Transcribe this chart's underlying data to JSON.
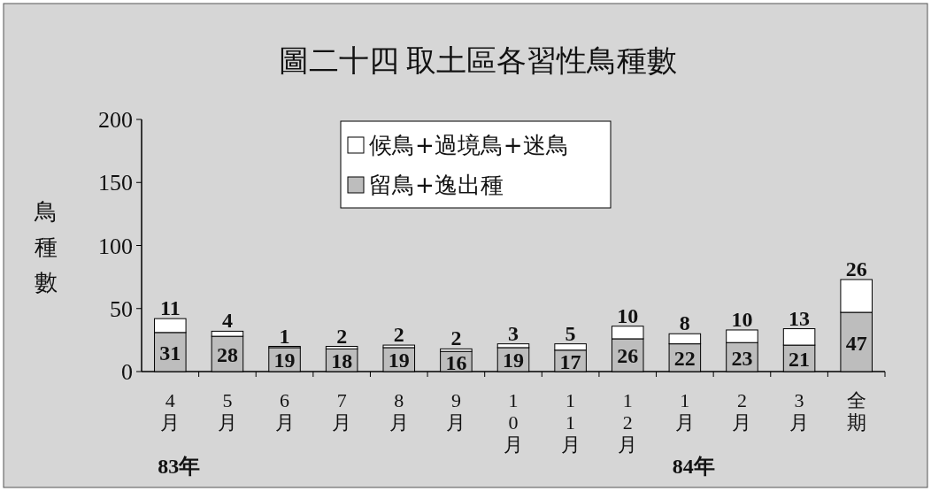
{
  "chart_data": {
    "type": "bar",
    "stacked": true,
    "title": "圖二十四 取土區各習性鳥種數",
    "ylabel": "鳥種數",
    "categories": [
      "4月",
      "5月",
      "6月",
      "7月",
      "8月",
      "9月",
      "10月",
      "11月",
      "12月",
      "1月",
      "2月",
      "3月",
      "全期"
    ],
    "series": [
      {
        "name": "留鳥+逸出種",
        "color": "#bdbdbd",
        "values": [
          31,
          28,
          19,
          18,
          19,
          16,
          19,
          17,
          26,
          22,
          23,
          21,
          47
        ]
      },
      {
        "name": "候鳥+過境鳥+迷鳥",
        "color": "#ffffff",
        "values": [
          11,
          4,
          1,
          2,
          2,
          2,
          3,
          5,
          10,
          8,
          10,
          13,
          26
        ]
      }
    ],
    "ylim": [
      0,
      200
    ],
    "yticks": [
      0,
      50,
      100,
      150,
      200
    ],
    "grid": false,
    "legend": "top",
    "data_labels": true,
    "annotations": [
      "83年",
      "84年"
    ]
  }
}
